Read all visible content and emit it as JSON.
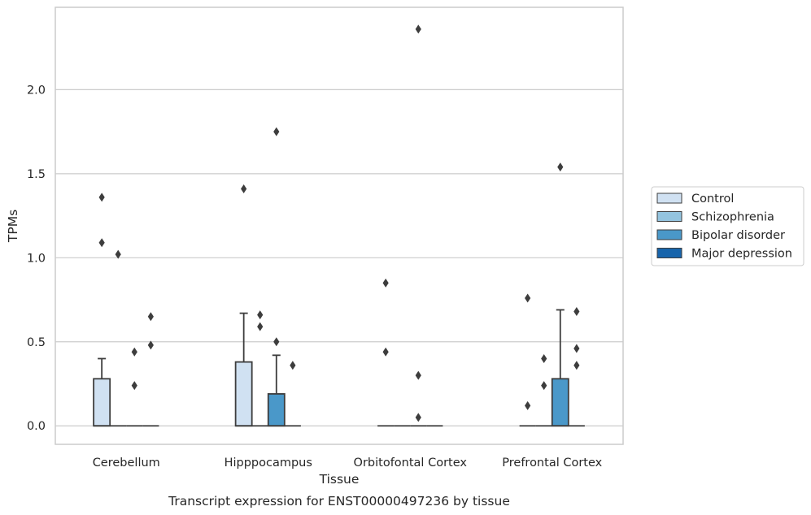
{
  "chart_data": {
    "type": "boxplot",
    "caption": "Transcript expression for ENST00000497236 by tissue",
    "xlabel": "Tissue",
    "ylabel": "TPMs",
    "ylim": [
      -0.11,
      2.49
    ],
    "yticks": [
      0.0,
      0.5,
      1.0,
      1.5,
      2.0
    ],
    "ytick_labels": [
      "0.0",
      "0.5",
      "1.0",
      "1.5",
      "2.0"
    ],
    "grid": "horizontal",
    "legend_position": "right",
    "categories": [
      "Cerebellum",
      "Hipppocampus",
      "Orbitofontal Cortex",
      "Prefrontal Cortex"
    ],
    "series": [
      {
        "name": "Control",
        "color": "#d0e1f2",
        "boxes": [
          {
            "q1": 0.0,
            "median": 0.0,
            "q3": 0.28,
            "whisker_low": 0.0,
            "whisker_high": 0.4,
            "outliers": [
              1.36,
              1.09
            ]
          },
          {
            "q1": 0.0,
            "median": 0.0,
            "q3": 0.38,
            "whisker_low": 0.0,
            "whisker_high": 0.67,
            "outliers": [
              1.41
            ]
          },
          {
            "q1": 0.0,
            "median": 0.0,
            "q3": 0.0,
            "whisker_low": 0.0,
            "whisker_high": 0.0,
            "outliers": [
              0.85,
              0.44
            ]
          },
          {
            "q1": 0.0,
            "median": 0.0,
            "q3": 0.0,
            "whisker_low": 0.0,
            "whisker_high": 0.0,
            "outliers": [
              0.76,
              0.12
            ]
          }
        ]
      },
      {
        "name": "Schizophrenia",
        "color": "#94c4df",
        "boxes": [
          {
            "q1": 0.0,
            "median": 0.0,
            "q3": 0.0,
            "whisker_low": 0.0,
            "whisker_high": 0.0,
            "outliers": [
              1.02
            ]
          },
          {
            "q1": 0.0,
            "median": 0.0,
            "q3": 0.0,
            "whisker_low": 0.0,
            "whisker_high": 0.0,
            "outliers": [
              0.66,
              0.59
            ]
          },
          {
            "q1": 0.0,
            "median": 0.0,
            "q3": 0.0,
            "whisker_low": 0.0,
            "whisker_high": 0.0,
            "outliers": []
          },
          {
            "q1": 0.0,
            "median": 0.0,
            "q3": 0.0,
            "whisker_low": 0.0,
            "whisker_high": 0.0,
            "outliers": [
              0.4,
              0.24
            ]
          }
        ]
      },
      {
        "name": "Bipolar disorder",
        "color": "#4a98c9",
        "boxes": [
          {
            "q1": 0.0,
            "median": 0.0,
            "q3": 0.0,
            "whisker_low": 0.0,
            "whisker_high": 0.0,
            "outliers": [
              0.44,
              0.24
            ]
          },
          {
            "q1": 0.0,
            "median": 0.0,
            "q3": 0.19,
            "whisker_low": 0.0,
            "whisker_high": 0.42,
            "outliers": [
              1.75,
              0.5
            ]
          },
          {
            "q1": 0.0,
            "median": 0.0,
            "q3": 0.0,
            "whisker_low": 0.0,
            "whisker_high": 0.0,
            "outliers": [
              2.36,
              0.3,
              0.05
            ]
          },
          {
            "q1": 0.0,
            "median": 0.0,
            "q3": 0.28,
            "whisker_low": 0.0,
            "whisker_high": 0.69,
            "outliers": [
              1.54
            ]
          }
        ]
      },
      {
        "name": "Major depression",
        "color": "#1764ab",
        "boxes": [
          {
            "q1": 0.0,
            "median": 0.0,
            "q3": 0.0,
            "whisker_low": 0.0,
            "whisker_high": 0.0,
            "outliers": [
              0.65,
              0.48
            ]
          },
          {
            "q1": 0.0,
            "median": 0.0,
            "q3": 0.0,
            "whisker_low": 0.0,
            "whisker_high": 0.0,
            "outliers": [
              0.36
            ]
          },
          {
            "q1": 0.0,
            "median": 0.0,
            "q3": 0.0,
            "whisker_low": 0.0,
            "whisker_high": 0.0,
            "outliers": []
          },
          {
            "q1": 0.0,
            "median": 0.0,
            "q3": 0.0,
            "whisker_low": 0.0,
            "whisker_high": 0.0,
            "outliers": [
              0.68,
              0.46,
              0.36
            ]
          }
        ]
      }
    ]
  }
}
